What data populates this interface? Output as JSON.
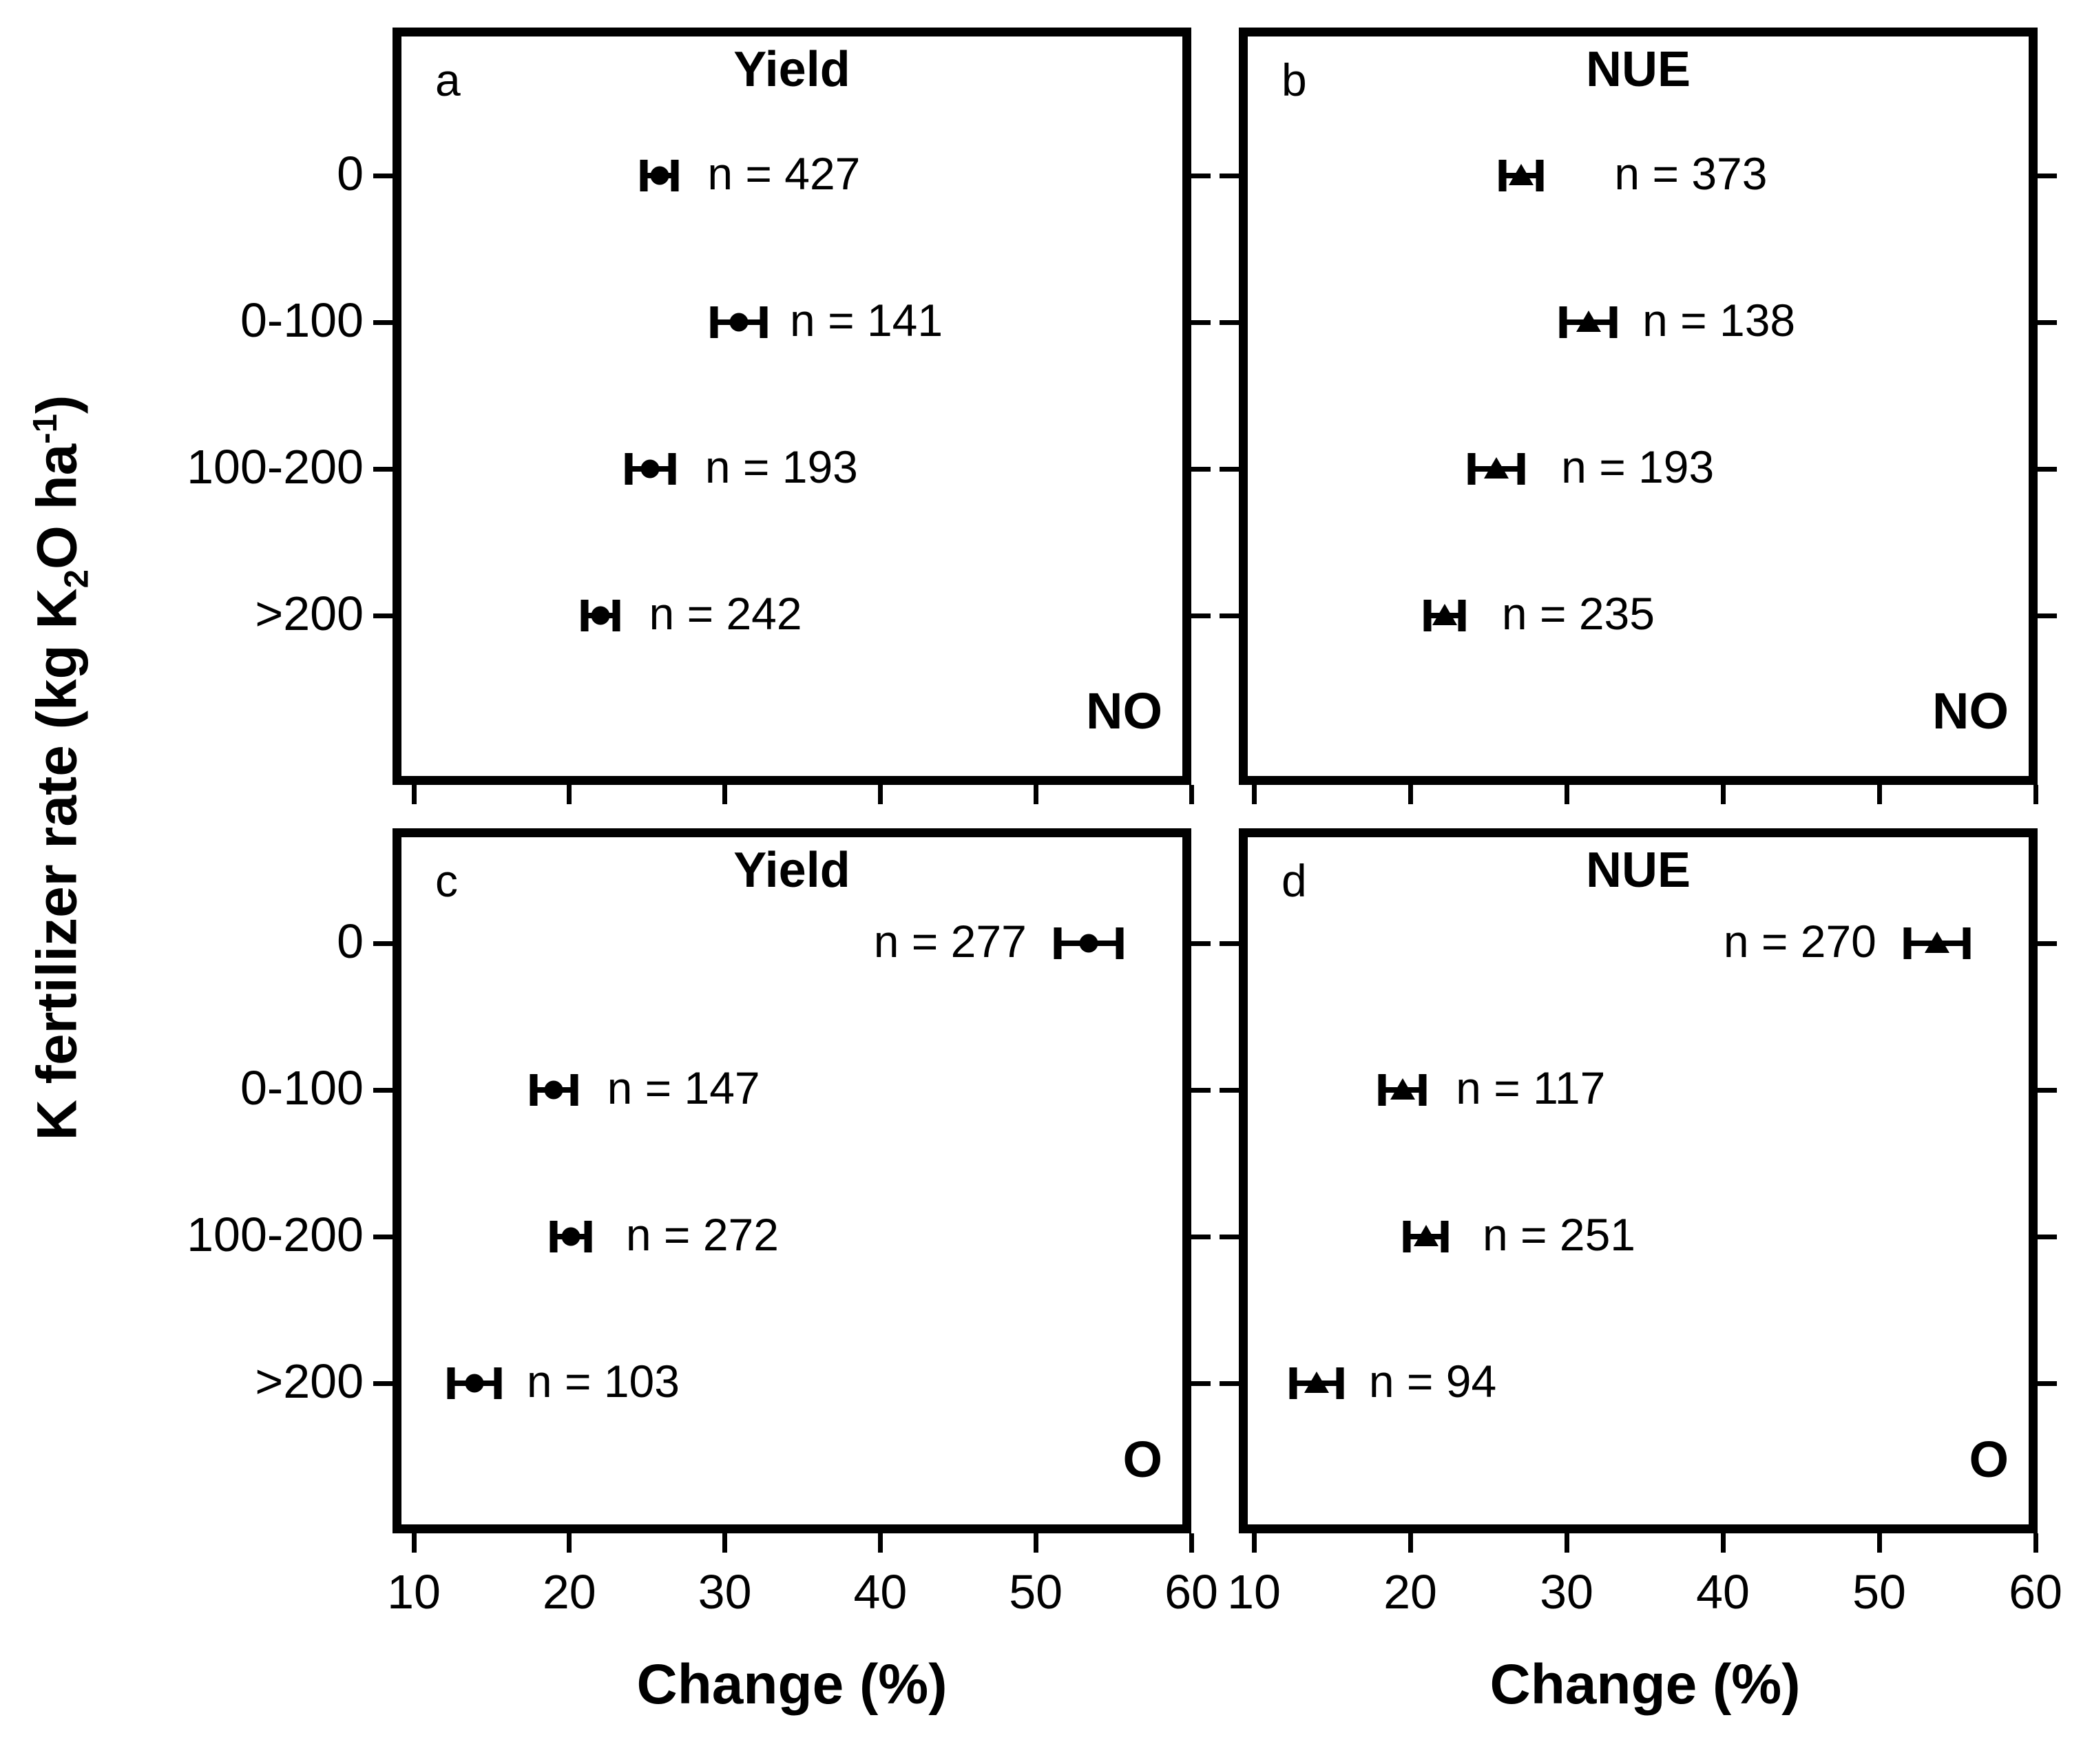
{
  "figure": {
    "background": "#ffffff",
    "foreground": "#000000"
  },
  "chart_data": {
    "type": "scatter",
    "subtype": "horizontal-error-bar-grid",
    "categories": [
      "0",
      "0-100",
      "100-200",
      ">200"
    ],
    "x_axis": {
      "label": "Change (%)",
      "ticks": [
        10,
        20,
        30,
        40,
        50,
        60
      ],
      "range": [
        8.5,
        60
      ]
    },
    "y_axis": {
      "label_plain": "K fertilizer rate (kg K2O ha-1)",
      "label_pre": "K fertilizer rate (kg K",
      "label_sub": "2",
      "label_mid": "O ha",
      "label_sup": "-1",
      "label_post": ")"
    },
    "panels": [
      {
        "id": "a",
        "letter": "a",
        "title": "Yield",
        "group": "NO",
        "marker": "circle",
        "col": "left",
        "band": "top",
        "points": [
          {
            "category": "0",
            "mean": 25.8,
            "err": 1.0,
            "n": 427,
            "label": "n = 427",
            "label_side": "right",
            "label_gap": 47
          },
          {
            "category": "0-100",
            "mean": 30.9,
            "err": 1.6,
            "n": 141,
            "label": "n = 141",
            "label_side": "right",
            "label_gap": 38
          },
          {
            "category": "100-200",
            "mean": 25.2,
            "err": 1.4,
            "n": 193,
            "label": "n = 193",
            "label_side": "right",
            "label_gap": 48
          },
          {
            "category": ">200",
            "mean": 22.0,
            "err": 1.0,
            "n": 242,
            "label": "n = 242",
            "label_side": "right",
            "label_gap": 48
          }
        ]
      },
      {
        "id": "b",
        "letter": "b",
        "title": "NUE",
        "group": "NO",
        "marker": "triangle",
        "col": "right",
        "band": "top",
        "points": [
          {
            "category": "0",
            "mean": 27.1,
            "err": 1.2,
            "n": 373,
            "label": "n = 373",
            "label_side": "right",
            "label_gap": 108
          },
          {
            "category": "0-100",
            "mean": 31.4,
            "err": 1.6,
            "n": 138,
            "label": "n = 138",
            "label_side": "right",
            "label_gap": 42
          },
          {
            "category": "100-200",
            "mean": 25.5,
            "err": 1.6,
            "n": 193,
            "label": "n = 193",
            "label_side": "right",
            "label_gap": 58
          },
          {
            "category": ">200",
            "mean": 22.2,
            "err": 1.1,
            "n": 235,
            "label": "n = 235",
            "label_side": "right",
            "label_gap": 58
          }
        ]
      },
      {
        "id": "c",
        "letter": "c",
        "title": "Yield",
        "group": "O",
        "marker": "circle",
        "col": "left",
        "band": "bottom",
        "points": [
          {
            "category": "0",
            "mean": 53.4,
            "err": 2.0,
            "n": 277,
            "label": "n = 277",
            "label_side": "left",
            "label_gap": 45
          },
          {
            "category": "0-100",
            "mean": 19.0,
            "err": 1.3,
            "n": 147,
            "label": "n = 147",
            "label_side": "right",
            "label_gap": 48
          },
          {
            "category": "100-200",
            "mean": 20.1,
            "err": 1.1,
            "n": 272,
            "label": "n = 272",
            "label_side": "right",
            "label_gap": 55
          },
          {
            "category": ">200",
            "mean": 13.9,
            "err": 1.5,
            "n": 103,
            "label": "n = 103",
            "label_side": "right",
            "label_gap": 42
          }
        ]
      },
      {
        "id": "d",
        "letter": "d",
        "title": "NUE",
        "group": "O",
        "marker": "triangle",
        "col": "right",
        "band": "bottom",
        "points": [
          {
            "category": "0",
            "mean": 53.7,
            "err": 1.9,
            "n": 270,
            "label": "n = 270",
            "label_side": "left",
            "label_gap": 45
          },
          {
            "category": "0-100",
            "mean": 19.5,
            "err": 1.3,
            "n": 117,
            "label": "n = 117",
            "label_side": "right",
            "label_gap": 48
          },
          {
            "category": "100-200",
            "mean": 21.0,
            "err": 1.2,
            "n": 251,
            "label": "n = 251",
            "label_side": "right",
            "label_gap": 55
          },
          {
            "category": ">200",
            "mean": 14.0,
            "err": 1.5,
            "n": 94,
            "label": "n = 94",
            "label_side": "right",
            "label_gap": 42
          }
        ]
      }
    ]
  }
}
